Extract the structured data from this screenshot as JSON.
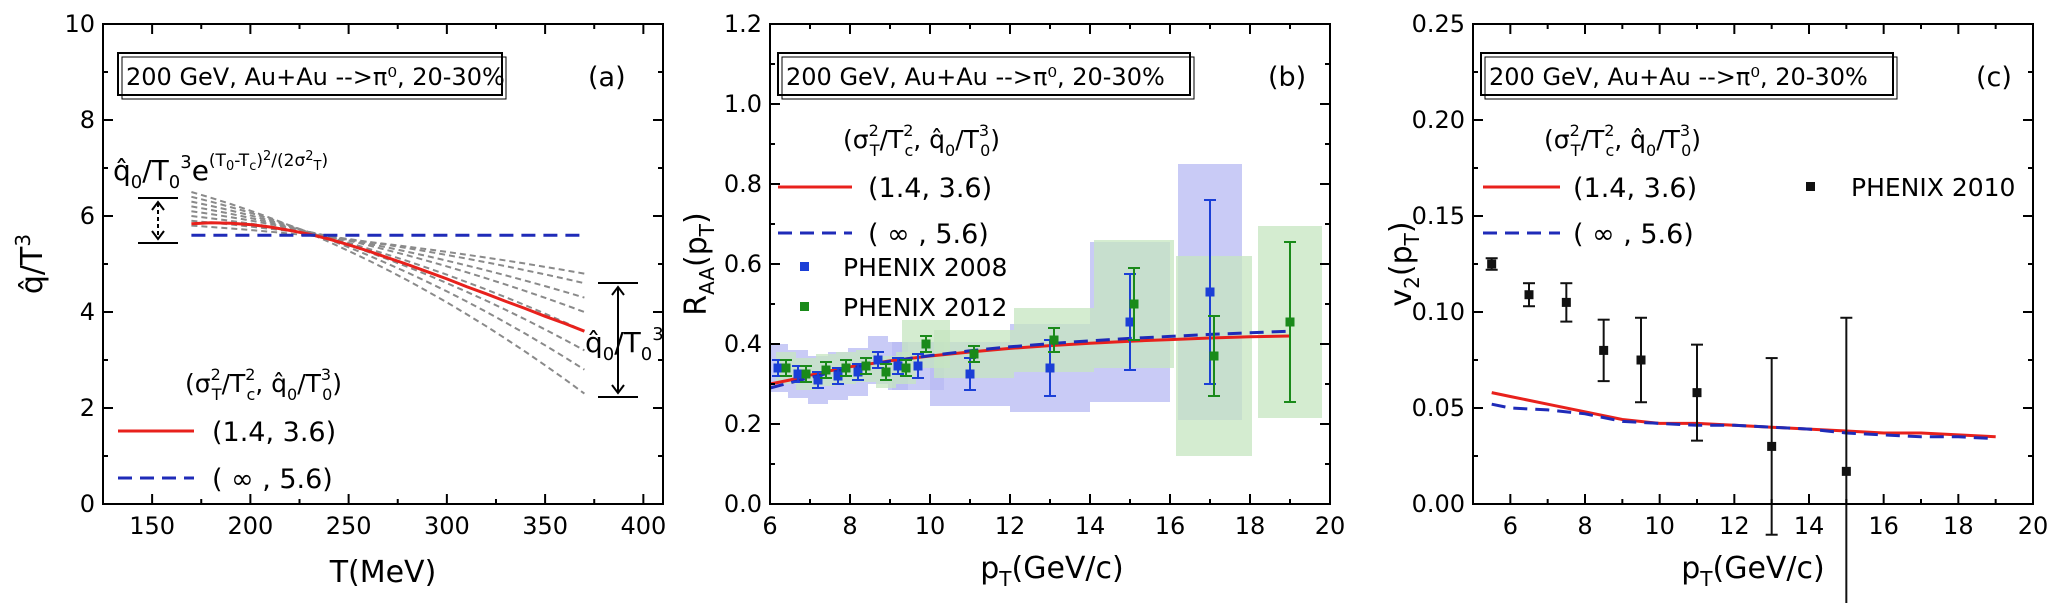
{
  "figure": {
    "caption_box": "200 GeV, Au+Au -->π⁰, 20-30%"
  },
  "chart_data": [
    {
      "type": "line",
      "panel": "(a)",
      "box_label": "200 GeV, Au+Au -->π⁰, 20-30%",
      "xlabel": "T(MeV)",
      "ylabel": "q̂/T³",
      "xlim": [
        125,
        410
      ],
      "ylim": [
        0,
        10
      ],
      "xticks": [
        150,
        200,
        250,
        300,
        350,
        400
      ],
      "yticks": [
        0,
        2,
        4,
        6,
        8,
        10
      ],
      "formula_label": "q̂₀/T₀³e^((T₀-T_c)²/(2σ_T²))",
      "right_label": "q̂₀/T₀³",
      "legend_header": "(σ_T²/T_c², q̂₀/T₀³)",
      "series": [
        {
          "name": "(1.4, 3.6)",
          "color": "#e8211c",
          "style": "solid",
          "x": [
            170,
            180,
            190,
            200,
            210,
            220,
            230,
            240,
            250,
            260,
            270,
            280,
            290,
            300,
            310,
            320,
            330,
            340,
            350,
            360,
            370
          ],
          "y": [
            5.84,
            5.86,
            5.85,
            5.82,
            5.77,
            5.7,
            5.62,
            5.52,
            5.4,
            5.27,
            5.13,
            4.99,
            4.84,
            4.69,
            4.53,
            4.38,
            4.22,
            4.07,
            3.91,
            3.76,
            3.6
          ]
        },
        {
          "name": "( ∞ , 5.6)",
          "color": "#1f2bb8",
          "style": "dashed",
          "x": [
            170,
            370
          ],
          "y": [
            5.6,
            5.6
          ]
        }
      ],
      "grey_curves": [
        {
          "start": 6.5,
          "end": 2.3
        },
        {
          "start": 6.4,
          "end": 2.8
        },
        {
          "start": 6.3,
          "end": 3.2
        },
        {
          "start": 6.2,
          "end": 3.6
        },
        {
          "start": 6.1,
          "end": 4.0
        },
        {
          "start": 6.0,
          "end": 4.3
        },
        {
          "start": 5.9,
          "end": 4.6
        },
        {
          "start": 5.8,
          "end": 4.8
        }
      ]
    },
    {
      "type": "line",
      "panel": "(b)",
      "box_label": "200 GeV, Au+Au -->π⁰, 20-30%",
      "xlabel": "p_T(GeV/c)",
      "ylabel": "R_AA(p_T)",
      "xlim": [
        6,
        20
      ],
      "ylim": [
        0,
        1.2
      ],
      "xticks": [
        6,
        8,
        10,
        12,
        14,
        16,
        18,
        20
      ],
      "yticks": [
        0.0,
        0.2,
        0.4,
        0.6,
        0.8,
        1.0,
        1.2
      ],
      "legend_header": "(σ_T²/T_c², q̂₀/T₀³)",
      "series": [
        {
          "name": "(1.4, 3.6)",
          "color": "#e8211c",
          "style": "solid",
          "x": [
            6,
            6.5,
            7,
            7.5,
            8,
            9,
            10,
            11,
            12,
            13,
            14,
            15,
            16,
            17,
            18,
            19
          ],
          "y": [
            0.3,
            0.31,
            0.322,
            0.333,
            0.343,
            0.358,
            0.37,
            0.38,
            0.389,
            0.396,
            0.402,
            0.407,
            0.411,
            0.415,
            0.418,
            0.42
          ]
        },
        {
          "name": "( ∞ , 5.6)",
          "color": "#1f2bb8",
          "style": "dashed",
          "x": [
            6,
            6.5,
            7,
            7.5,
            8,
            9,
            10,
            11,
            12,
            13,
            14,
            15,
            16,
            17,
            18,
            19
          ],
          "y": [
            0.29,
            0.303,
            0.316,
            0.328,
            0.34,
            0.357,
            0.371,
            0.383,
            0.393,
            0.401,
            0.408,
            0.414,
            0.419,
            0.424,
            0.428,
            0.432
          ]
        }
      ],
      "data_series": [
        {
          "name": "PHENIX 2008",
          "color": "#1b3fd6",
          "band_color": "#b7b9f3",
          "x": [
            6.2,
            6.7,
            7.2,
            7.7,
            8.2,
            8.7,
            9.2,
            9.7,
            11.0,
            13.0,
            15.0,
            17.0
          ],
          "y": [
            0.34,
            0.325,
            0.31,
            0.32,
            0.33,
            0.36,
            0.345,
            0.345,
            0.325,
            0.34,
            0.455,
            0.53
          ],
          "err": [
            0.02,
            0.02,
            0.02,
            0.02,
            0.02,
            0.02,
            0.02,
            0.03,
            0.04,
            0.07,
            0.12,
            0.23
          ],
          "band": [
            0.06,
            0.06,
            0.06,
            0.06,
            0.06,
            0.06,
            0.06,
            0.06,
            0.08,
            0.11,
            0.2,
            0.32
          ]
        },
        {
          "name": "PHENIX 2012",
          "color": "#1a8a1a",
          "band_color": "#c6e6c0",
          "x": [
            6.4,
            6.9,
            7.4,
            7.9,
            8.4,
            8.9,
            9.4,
            9.9,
            11.1,
            13.1,
            15.1,
            17.1,
            19.0
          ],
          "y": [
            0.34,
            0.325,
            0.335,
            0.34,
            0.345,
            0.33,
            0.34,
            0.4,
            0.375,
            0.41,
            0.5,
            0.37,
            0.455
          ],
          "err": [
            0.02,
            0.02,
            0.02,
            0.02,
            0.02,
            0.02,
            0.02,
            0.02,
            0.02,
            0.03,
            0.09,
            0.1,
            0.2
          ],
          "band": [
            0.04,
            0.04,
            0.04,
            0.04,
            0.04,
            0.04,
            0.04,
            0.06,
            0.06,
            0.08,
            0.16,
            0.25,
            0.24
          ]
        }
      ]
    },
    {
      "type": "scatter",
      "panel": "(c)",
      "box_label": "200 GeV, Au+Au -->π⁰, 20-30%",
      "xlabel": "p_T(GeV/c)",
      "ylabel": "v₂(p_T)",
      "xlim": [
        5,
        20
      ],
      "ylim": [
        0,
        0.25
      ],
      "xticks": [
        6,
        8,
        10,
        12,
        14,
        16,
        18,
        20
      ],
      "yticks": [
        0.0,
        0.05,
        0.1,
        0.15,
        0.2,
        0.25
      ],
      "ytick_labels": [
        "0.00",
        "0.05",
        "0.10",
        "0.15",
        "0.20",
        "0.25"
      ],
      "legend_header": "(σ_T²/T_c², q̂₀/T₀³)",
      "series": [
        {
          "name": "(1.4, 3.6)",
          "color": "#e8211c",
          "style": "solid",
          "x": [
            5.5,
            6,
            7,
            8,
            9,
            10,
            11,
            12,
            13,
            14,
            15,
            16,
            17,
            18,
            19
          ],
          "y": [
            0.058,
            0.056,
            0.052,
            0.048,
            0.044,
            0.042,
            0.042,
            0.041,
            0.04,
            0.039,
            0.038,
            0.037,
            0.037,
            0.036,
            0.035
          ]
        },
        {
          "name": "( ∞ , 5.6)",
          "color": "#1f2bb8",
          "style": "dashed",
          "x": [
            5.5,
            6,
            7,
            8,
            9,
            10,
            11,
            12,
            13,
            14,
            15,
            16,
            17,
            18,
            19
          ],
          "y": [
            0.052,
            0.05,
            0.049,
            0.047,
            0.043,
            0.042,
            0.041,
            0.041,
            0.04,
            0.039,
            0.037,
            0.036,
            0.035,
            0.035,
            0.034
          ]
        }
      ],
      "data_series": [
        {
          "name": "PHENIX 2010",
          "color": "#111111",
          "x": [
            5.5,
            6.5,
            7.5,
            8.5,
            9.5,
            11.0,
            13.0,
            15.0
          ],
          "y": [
            0.125,
            0.109,
            0.105,
            0.08,
            0.075,
            0.058,
            0.03,
            0.017
          ],
          "err": [
            0.003,
            0.006,
            0.01,
            0.016,
            0.022,
            0.025,
            0.046,
            0.08
          ]
        }
      ]
    }
  ]
}
